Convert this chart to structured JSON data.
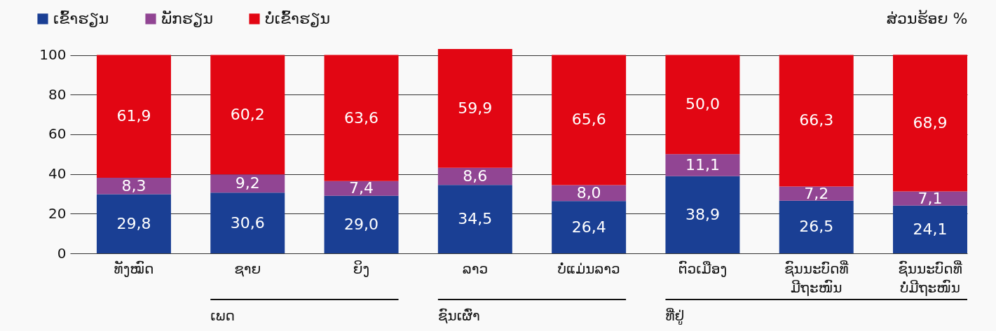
{
  "chart_data": {
    "type": "bar",
    "stacked": true,
    "ylabel": "ສ່ວນຮ້ອຍ %",
    "categories": [
      "ທັງໝົດ",
      "ຊາຍ",
      "ຍິງ",
      "ລາວ",
      "ບໍ່ແມ່ນລາວ",
      "ຕົວເມືອງ",
      "ຊົນນະບົດທີ່\nມີຖະໜົນ",
      "ຊົນນະບົດທີ່\nບໍ່ມີຖະໜົນ"
    ],
    "series": [
      {
        "name": "ເຂົ້າຮຽນ",
        "color": "#1a3f94",
        "values": [
          29.8,
          30.6,
          29.0,
          34.5,
          26.4,
          38.9,
          26.5,
          24.1
        ],
        "value_labels": [
          "29,8",
          "30,6",
          "29,0",
          "34,5",
          "26,4",
          "38,9",
          "26,5",
          "24,1"
        ]
      },
      {
        "name": "ພັກຮຽນ",
        "color": "#914593",
        "values": [
          8.3,
          9.2,
          7.4,
          8.6,
          8.0,
          11.1,
          7.2,
          7.1
        ],
        "value_labels": [
          "8,3",
          "9,2",
          "7,4",
          "8,6",
          "8,0",
          "11,1",
          "7,2",
          "7,1"
        ]
      },
      {
        "name": "ບໍ່ເຂົ້າຮຽນ",
        "color": "#e20613",
        "values": [
          61.9,
          60.2,
          63.6,
          59.9,
          65.6,
          50.0,
          66.3,
          68.9
        ],
        "value_labels": [
          "61,9",
          "60,2",
          "63,6",
          "59,9",
          "65,6",
          "50,0",
          "66,3",
          "68,9"
        ]
      }
    ],
    "ylim": [
      0,
      103
    ],
    "yticks": [
      0,
      20,
      40,
      60,
      80,
      100
    ],
    "grid": "y",
    "legend": "top left",
    "annotations": [
      "ເພດ",
      "ຊົນເຜົ່າ",
      "ທີ່ຢູ່"
    ]
  }
}
